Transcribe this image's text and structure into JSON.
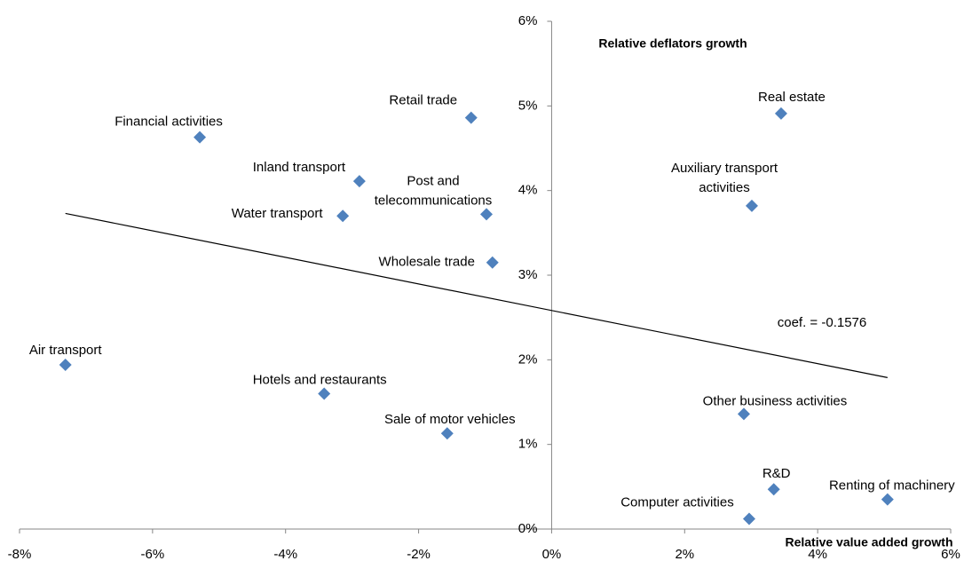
{
  "chart_data": {
    "type": "scatter",
    "x_label": "Relative value added growth",
    "y_label": "Relative deflators growth",
    "annotation": "coef. = -0.1576",
    "color": "#4f81bd",
    "labels": [
      [
        "Air transport"
      ],
      [
        "Financial activities"
      ],
      [
        "Inland transport"
      ],
      [
        "Water transport"
      ],
      [
        "Hotels and restaurants"
      ],
      [
        "Sale of motor vehicles"
      ],
      [
        "Retail trade"
      ],
      [
        "Post and",
        "telecommunications"
      ],
      [
        "Wholesale trade"
      ],
      [
        "Real estate"
      ],
      [
        "Auxiliary transport",
        "activities"
      ],
      [
        "Other business activities"
      ],
      [
        "R&D"
      ],
      [
        "Computer activities"
      ],
      [
        "Renting of machinery"
      ]
    ],
    "x": [
      -7.31,
      -5.29,
      -2.89,
      -3.14,
      -3.42,
      -1.57,
      -1.21,
      -0.98,
      -0.89,
      3.45,
      3.01,
      2.89,
      3.34,
      2.97,
      5.05
    ],
    "y": [
      1.94,
      4.63,
      4.11,
      3.7,
      1.6,
      1.13,
      4.86,
      3.72,
      3.15,
      4.91,
      3.82,
      1.36,
      0.47,
      0.12,
      0.35
    ],
    "trendline": {
      "x": [
        -7.31,
        5.05
      ],
      "y": [
        3.73,
        1.79
      ]
    },
    "xlim": [
      -8,
      6
    ],
    "ylim": [
      0,
      6
    ],
    "xticks": [
      {
        "value": -8,
        "label": "-8%"
      },
      {
        "value": -6,
        "label": "-6%"
      },
      {
        "value": -4,
        "label": "-4%"
      },
      {
        "value": -2,
        "label": "-2%"
      },
      {
        "value": 0,
        "label": "0%"
      },
      {
        "value": 2,
        "label": "2%"
      },
      {
        "value": 4,
        "label": "4%"
      },
      {
        "value": 6,
        "label": "6%"
      }
    ],
    "yticks": [
      {
        "value": 0,
        "label": "0%"
      },
      {
        "value": 1,
        "label": "1%"
      },
      {
        "value": 2,
        "label": "2%"
      },
      {
        "value": 3,
        "label": "3%"
      },
      {
        "value": 4,
        "label": "4%"
      },
      {
        "value": 5,
        "label": "5%"
      },
      {
        "value": 6,
        "label": "6%"
      }
    ]
  }
}
